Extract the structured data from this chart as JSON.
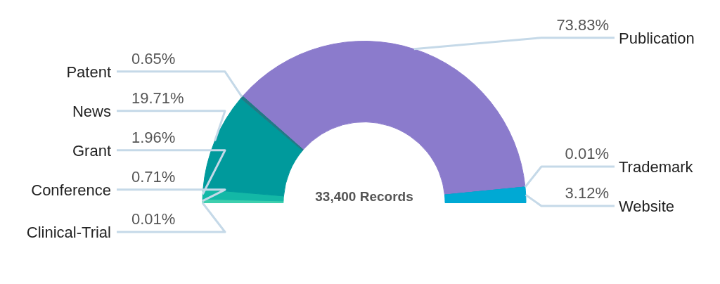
{
  "chart_data": {
    "type": "donut",
    "categories": [
      "Clinical-Trial",
      "Conference",
      "Grant",
      "News",
      "Patent",
      "Publication",
      "Trademark",
      "Website"
    ],
    "values": [
      0.01,
      0.71,
      1.96,
      19.71,
      0.65,
      73.83,
      0.01,
      3.12
    ],
    "value_labels": [
      "0.01%",
      "0.71%",
      "1.96%",
      "19.71%",
      "0.65%",
      "73.83%",
      "0.01%",
      "3.12%"
    ],
    "colors": [
      "#48d9b5",
      "#3ecfae",
      "#13b8a6",
      "#009a9c",
      "#217a86",
      "#8b7bcc",
      "#0a9bc0",
      "#00a9d4"
    ],
    "annotations": [
      "33,400 Records"
    ],
    "legend": false
  }
}
